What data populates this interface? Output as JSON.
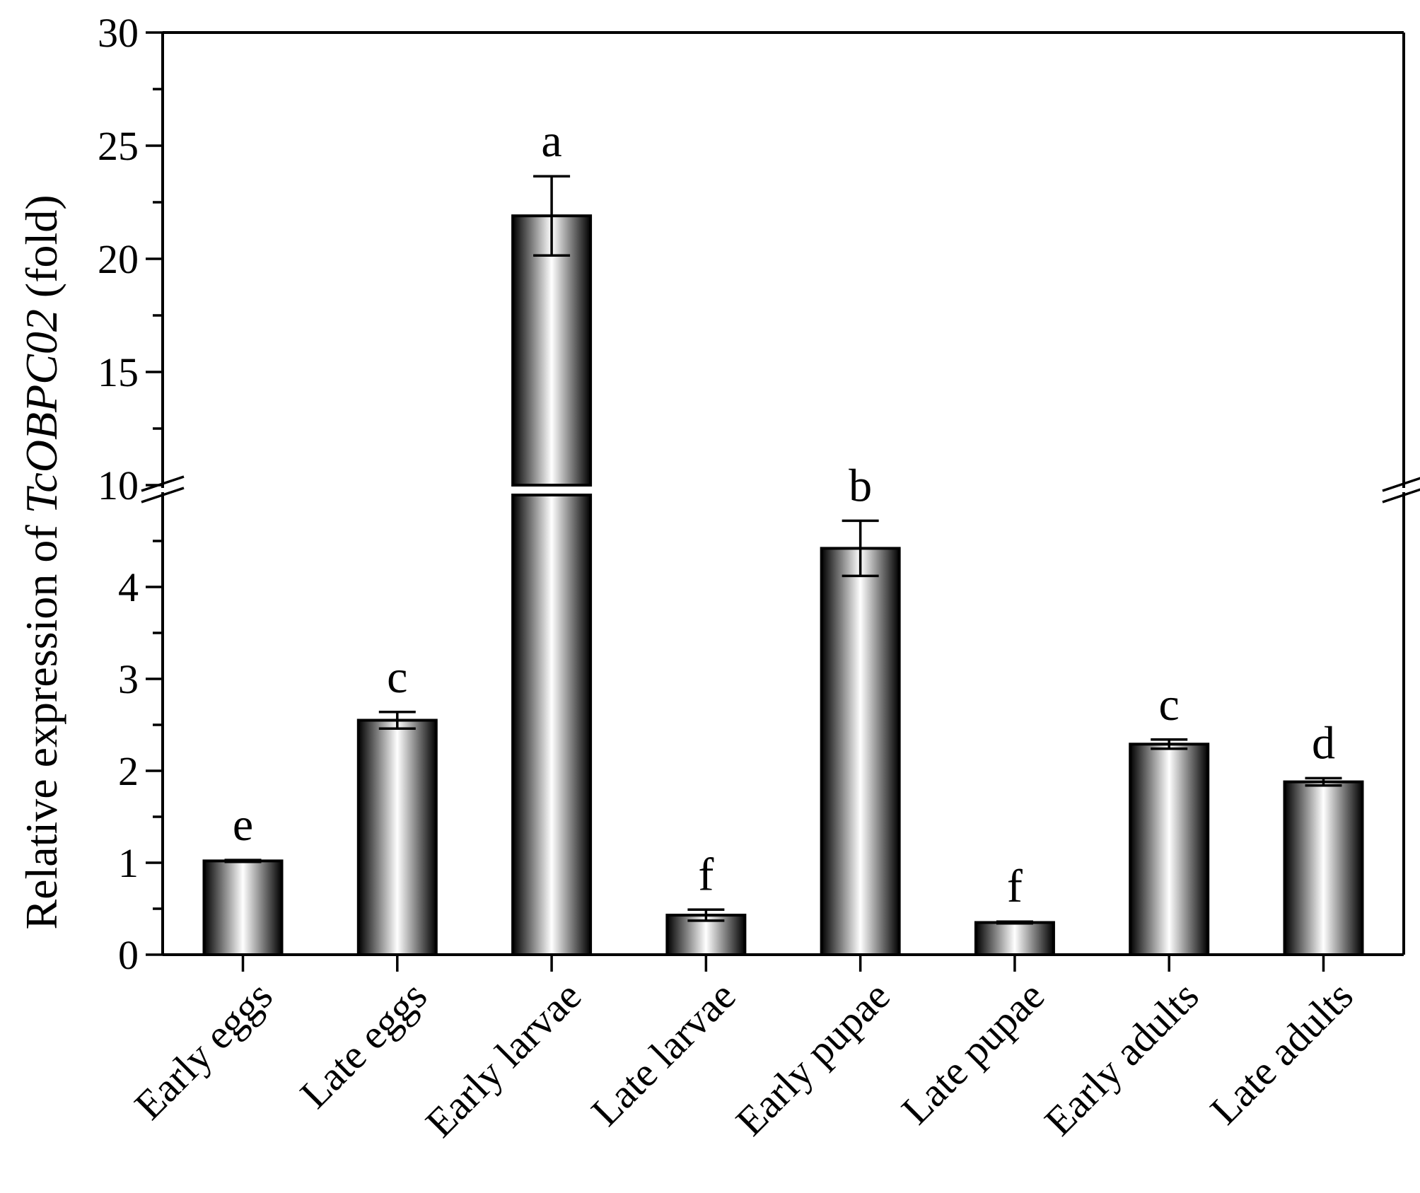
{
  "chart_data": {
    "type": "bar",
    "ylabel_parts": [
      "Relative expression of ",
      "TcOBPC02",
      " (fold)"
    ],
    "xlabel": "",
    "categories": [
      "Early eggs",
      "Late eggs",
      "Early larvae",
      "Late larvae",
      "Early pupae",
      "Late pupae",
      "Early adults",
      "Late adults"
    ],
    "values": [
      1.02,
      2.55,
      21.9,
      0.43,
      4.42,
      0.35,
      2.29,
      1.88
    ],
    "errors": [
      0.01,
      0.09,
      1.75,
      0.06,
      0.3,
      0.01,
      0.05,
      0.04
    ],
    "significance": [
      "e",
      "c",
      "a",
      "f",
      "b",
      "f",
      "c",
      "d"
    ],
    "axis_break": [
      5,
      10
    ],
    "ylim": [
      0,
      30
    ],
    "lower_ticks": [
      "0",
      "1",
      "2",
      "3",
      "4"
    ],
    "upper_ticks": [
      "10",
      "15",
      "20",
      "25",
      "30"
    ],
    "bar_style": "cylindrical gradient"
  }
}
